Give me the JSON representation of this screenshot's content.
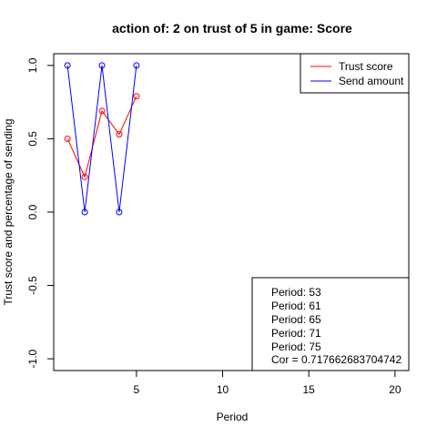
{
  "chart_data": {
    "type": "line",
    "title": "action of:  2  on trust of  5 in game:  Score",
    "xlabel": "Period",
    "ylabel": "Trust score and percentage of sending",
    "xlim": [
      0.2,
      20.8
    ],
    "ylim": [
      -1.08,
      1.08
    ],
    "x_ticks": [
      5,
      10,
      15,
      20
    ],
    "x_tick_labels": [
      "5",
      "10",
      "15",
      "20"
    ],
    "y_ticks": [
      -1.0,
      -0.5,
      0.0,
      0.5,
      1.0
    ],
    "y_tick_labels": [
      "-1.0",
      "-0.5",
      "0.0",
      "0.5",
      "1.0"
    ],
    "grid": false,
    "legend_position": "top-right",
    "series": [
      {
        "name": "Trust score",
        "color": "#ff0000",
        "x": [
          1,
          2,
          3,
          4,
          5
        ],
        "y": [
          0.5,
          0.24,
          0.69,
          0.53,
          0.79
        ]
      },
      {
        "name": "Send amount",
        "color": "#0000ff",
        "x": [
          1,
          2,
          3,
          4,
          5
        ],
        "y": [
          1.0,
          0.0,
          1.0,
          0.0,
          1.0
        ]
      }
    ],
    "info_box": {
      "position": "bottom-right",
      "lines": [
        "Period:  53",
        "Period:  61",
        "Period:  65",
        "Period:  71",
        "Period:  75",
        "Cor =  0.717662683704742"
      ]
    }
  }
}
